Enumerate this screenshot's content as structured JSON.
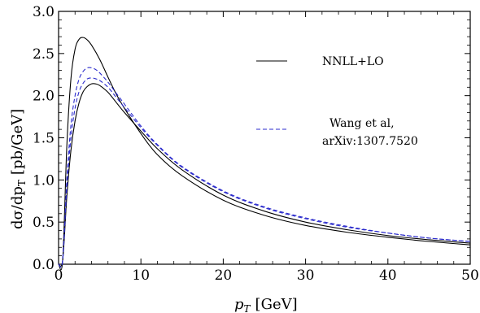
{
  "chart_data": {
    "type": "line",
    "xlabel_var": "p",
    "xlabel_sub": "T",
    "xlabel_unit": "[GeV]",
    "ylabel_main": "dσ/dp",
    "ylabel_sub": "T",
    "ylabel_unit": "[pb/GeV]",
    "xlim": [
      0,
      50
    ],
    "ylim": [
      0,
      3.0
    ],
    "xticks": [
      0,
      10,
      20,
      30,
      40,
      50
    ],
    "yticks": [
      0.0,
      0.5,
      1.0,
      1.5,
      2.0,
      2.5,
      3.0
    ],
    "ytick_labels": [
      "0.0",
      "0.5",
      "1.0",
      "1.5",
      "2.0",
      "2.5",
      "3.0"
    ],
    "grid": false,
    "legend_position": "top-right",
    "legend": [
      {
        "label_lines": [
          "NNLL+LO"
        ],
        "style": "solid",
        "color": "#000000"
      },
      {
        "label_lines": [
          "Wang et al,",
          "arXiv:1307.7520"
        ],
        "style": "dashed",
        "color": "#2b2bcc"
      }
    ],
    "series": [
      {
        "name": "NNLL+LO",
        "style": "solid",
        "color": "#000000",
        "x": [
          0.5,
          1.0,
          1.5,
          2.0,
          2.5,
          3.0,
          3.5,
          4.0,
          5.0,
          6.0,
          7.0,
          8.0,
          10.0,
          12.0,
          15.0,
          20.0,
          25.0,
          30.0,
          35.0,
          40.0,
          45.0,
          50.0
        ],
        "y": [
          0.05,
          1.4,
          2.2,
          2.55,
          2.67,
          2.69,
          2.66,
          2.6,
          2.43,
          2.22,
          2.02,
          1.85,
          1.55,
          1.3,
          1.05,
          0.76,
          0.58,
          0.46,
          0.38,
          0.32,
          0.27,
          0.23
        ]
      },
      {
        "name": "NNLL+LO",
        "style": "solid",
        "color": "#000000",
        "x": [
          0.5,
          1.0,
          1.5,
          2.0,
          2.5,
          3.0,
          3.5,
          4.0,
          4.5,
          5.0,
          6.0,
          7.0,
          8.0,
          10.0,
          12.0,
          15.0,
          20.0,
          25.0,
          30.0,
          35.0,
          40.0,
          45.0,
          50.0
        ],
        "y": [
          0.05,
          0.8,
          1.35,
          1.7,
          1.92,
          2.05,
          2.11,
          2.14,
          2.14,
          2.12,
          2.04,
          1.92,
          1.8,
          1.58,
          1.37,
          1.12,
          0.82,
          0.63,
          0.5,
          0.41,
          0.34,
          0.29,
          0.25
        ]
      },
      {
        "name": "Wang et al, arXiv:1307.7520",
        "style": "dashed",
        "color": "#2b2bcc",
        "x": [
          0.5,
          1.0,
          1.5,
          2.0,
          2.5,
          3.0,
          3.5,
          4.0,
          4.5,
          5.0,
          6.0,
          7.0,
          8.0,
          10.0,
          12.0,
          15.0,
          20.0,
          25.0,
          30.0,
          35.0,
          40.0,
          45.0,
          50.0
        ],
        "y": [
          0.05,
          1.0,
          1.65,
          2.0,
          2.2,
          2.29,
          2.33,
          2.33,
          2.31,
          2.27,
          2.16,
          2.03,
          1.9,
          1.64,
          1.42,
          1.16,
          0.87,
          0.68,
          0.55,
          0.45,
          0.37,
          0.31,
          0.27
        ]
      },
      {
        "name": "Wang et al, arXiv:1307.7520",
        "style": "dashed",
        "color": "#2b2bcc",
        "x": [
          0.5,
          1.0,
          1.5,
          2.0,
          2.5,
          3.0,
          3.5,
          4.0,
          4.5,
          5.0,
          6.0,
          7.0,
          8.0,
          10.0,
          12.0,
          15.0,
          20.0,
          25.0,
          30.0,
          35.0,
          40.0,
          45.0,
          50.0
        ],
        "y": [
          0.05,
          0.9,
          1.5,
          1.85,
          2.05,
          2.15,
          2.2,
          2.21,
          2.2,
          2.18,
          2.1,
          1.98,
          1.86,
          1.62,
          1.41,
          1.15,
          0.86,
          0.67,
          0.54,
          0.44,
          0.37,
          0.31,
          0.27
        ]
      }
    ]
  }
}
